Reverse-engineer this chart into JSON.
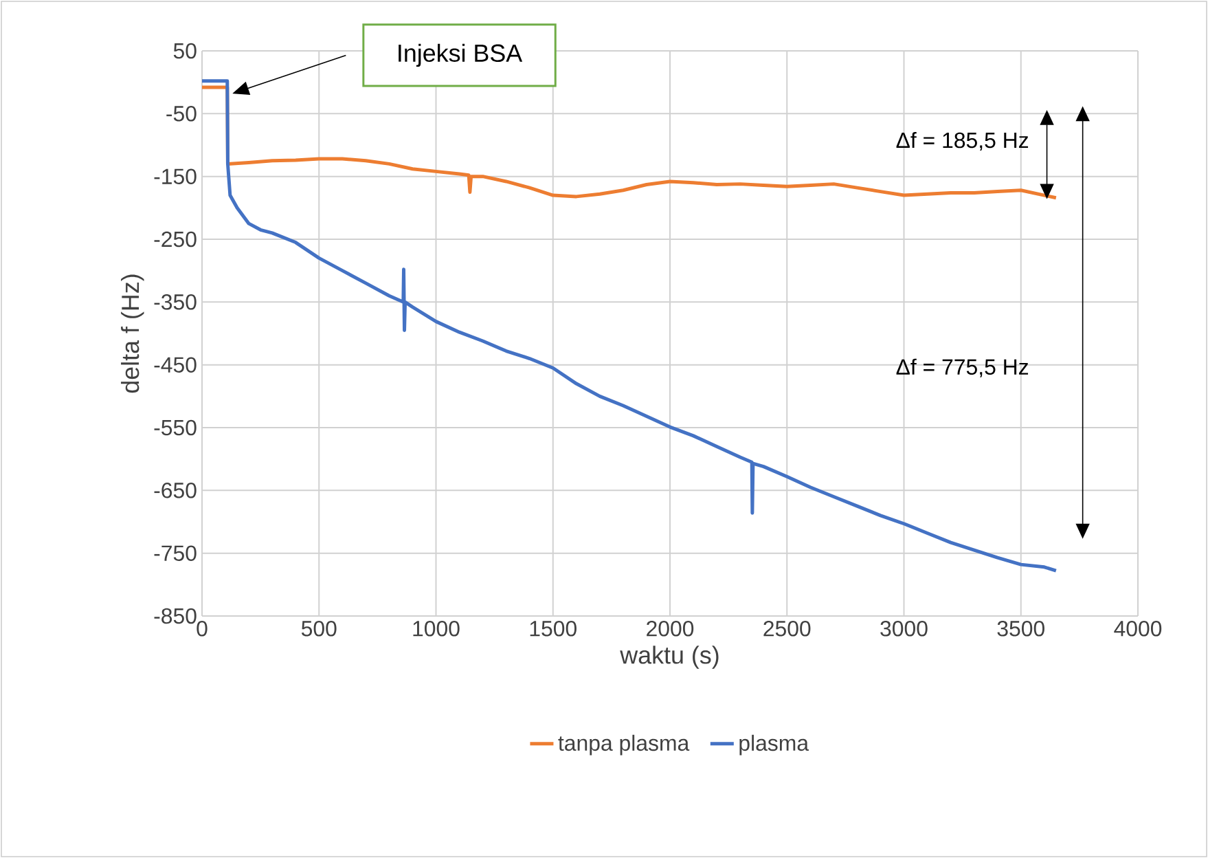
{
  "chart_data": {
    "type": "line",
    "xlabel": "waktu (s)",
    "ylabel": "delta f (Hz)",
    "xlim": [
      0,
      4000
    ],
    "xticks": [
      0,
      500,
      1000,
      1500,
      2000,
      2500,
      3000,
      3500,
      4000
    ],
    "ylim": [
      -850,
      50
    ],
    "yticks": [
      50,
      -50,
      -150,
      -250,
      -350,
      -450,
      -550,
      -650,
      -750,
      -850
    ],
    "grid": true,
    "legend": "bottom",
    "line_style": "solid",
    "marker": "none",
    "annotations": [
      "Injeksi BSA",
      "Δf = 185,5 Hz",
      "Δf = 775,5 Hz"
    ],
    "series": [
      {
        "name": "tanpa plasma",
        "color": "#ed7d31",
        "x": [
          0,
          100,
          108,
          110,
          200,
          300,
          400,
          500,
          600,
          700,
          800,
          900,
          1000,
          1100,
          1140,
          1145,
          1150,
          1200,
          1300,
          1400,
          1500,
          1600,
          1700,
          1800,
          1900,
          2000,
          2100,
          2200,
          2300,
          2400,
          2500,
          2600,
          2700,
          2800,
          2900,
          3000,
          3100,
          3200,
          3300,
          3400,
          3500,
          3600,
          3650
        ],
        "values": [
          -8,
          -8,
          -8,
          -130,
          -128,
          -125,
          -124,
          -122,
          -122,
          -125,
          -130,
          -138,
          -142,
          -146,
          -148,
          -175,
          -150,
          -150,
          -158,
          -168,
          -180,
          -182,
          -178,
          -172,
          -163,
          -158,
          -160,
          -163,
          -162,
          -164,
          -166,
          -164,
          -162,
          -168,
          -174,
          -180,
          -178,
          -176,
          -176,
          -174,
          -172,
          -180,
          -184
        ]
      },
      {
        "name": "plasma",
        "color": "#4472c4",
        "x": [
          0,
          100,
          108,
          110,
          120,
          150,
          200,
          250,
          300,
          400,
          500,
          600,
          700,
          800,
          860,
          862,
          865,
          868,
          900,
          1000,
          1100,
          1200,
          1300,
          1400,
          1500,
          1600,
          1700,
          1800,
          1900,
          2000,
          2100,
          2200,
          2300,
          2350,
          2352,
          2355,
          2400,
          2500,
          2600,
          2700,
          2800,
          2900,
          3000,
          3100,
          3200,
          3300,
          3400,
          3500,
          3600,
          3650
        ],
        "values": [
          2,
          2,
          2,
          -130,
          -180,
          -200,
          -225,
          -235,
          -240,
          -255,
          -280,
          -300,
          -320,
          -340,
          -350,
          -298,
          -395,
          -350,
          -358,
          -381,
          -398,
          -412,
          -428,
          -440,
          -455,
          -480,
          -500,
          -515,
          -532,
          -549,
          -563,
          -580,
          -597,
          -605,
          -686,
          -607,
          -612,
          -628,
          -645,
          -660,
          -675,
          -690,
          -703,
          -718,
          -733,
          -745,
          -757,
          -768,
          -772,
          -778
        ]
      }
    ]
  }
}
